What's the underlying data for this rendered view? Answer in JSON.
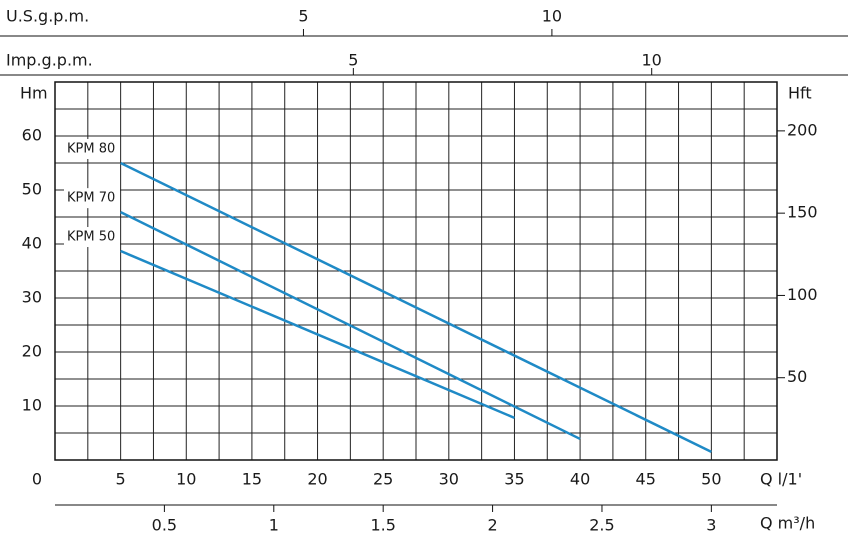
{
  "chart_data": {
    "type": "line",
    "xlabel": "Q l/1'",
    "ylabel": "Hm",
    "y2label": "Hft",
    "xlim": [
      0,
      55
    ],
    "xticks": [
      0,
      5,
      10,
      15,
      20,
      25,
      30,
      35,
      40,
      45,
      50
    ],
    "ylim": [
      0,
      70
    ],
    "yticks": [
      10,
      20,
      30,
      40,
      50,
      60
    ],
    "y2lim": [
      0,
      229.7
    ],
    "y2ticks": [
      50,
      100,
      150,
      200
    ],
    "x2label": "Q m³/h",
    "x2lim": [
      0,
      3.3
    ],
    "x2ticks": [
      0.5,
      1,
      1.5,
      2,
      2.5,
      3
    ],
    "x3label": "U.S.g.p.m.",
    "x3lim": [
      0,
      14.53
    ],
    "x3ticks": [
      5,
      10
    ],
    "x4label": "Imp.g.p.m.",
    "x4lim": [
      0,
      12.1
    ],
    "x4ticks": [
      5,
      10
    ],
    "grid": true,
    "grid_step_x": 2.5,
    "grid_step_y": 5,
    "series": [
      {
        "name": "KPM 80",
        "color": "#1f8ac6",
        "x": [
          5,
          50
        ],
        "values": [
          55,
          1.5
        ]
      },
      {
        "name": "KPM 70",
        "color": "#1f8ac6",
        "x": [
          5,
          40
        ],
        "values": [
          45.9,
          3.9
        ]
      },
      {
        "name": "KPM 50",
        "color": "#1f8ac6",
        "x": [
          5,
          35
        ],
        "values": [
          38.7,
          7.8
        ]
      }
    ]
  }
}
